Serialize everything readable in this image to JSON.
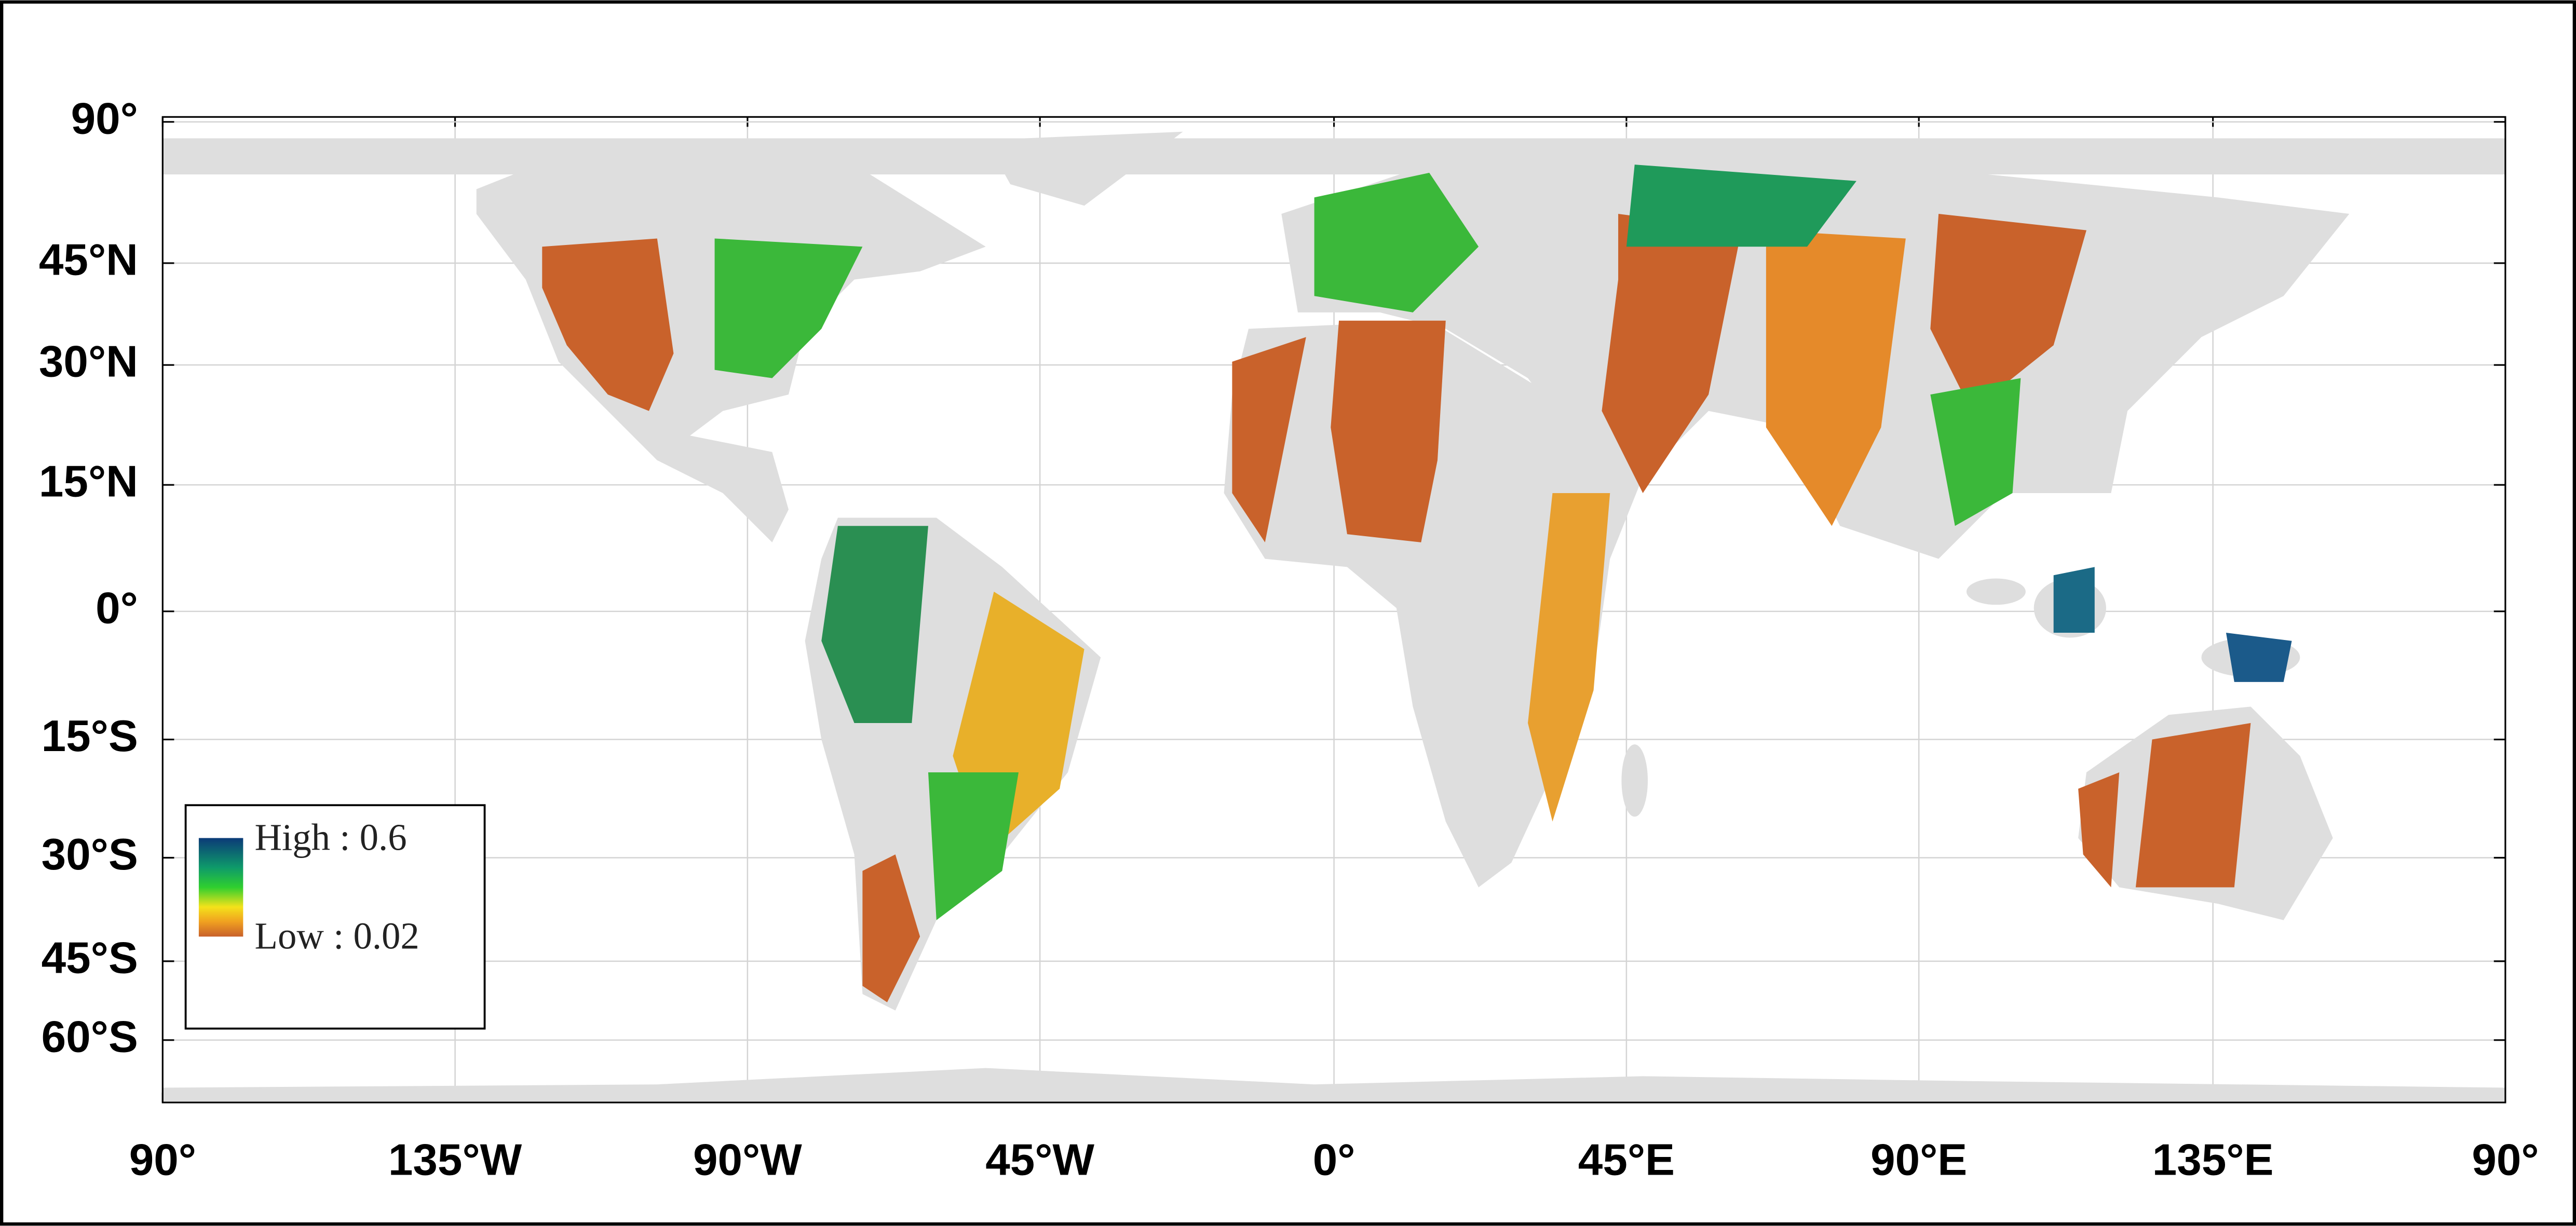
{
  "map": {
    "x_labels": [
      "90°",
      "135°W",
      "90°W",
      "45°W",
      "0°",
      "45°E",
      "90°E",
      "135°E",
      "90°"
    ],
    "y_labels": [
      "90°",
      "45°N",
      "30°N",
      "15°N",
      "0°",
      "15°S",
      "30°S",
      "45°S",
      "60°S"
    ],
    "legend": {
      "high": "High : 0.6",
      "low": "Low : 0.02"
    }
  }
}
